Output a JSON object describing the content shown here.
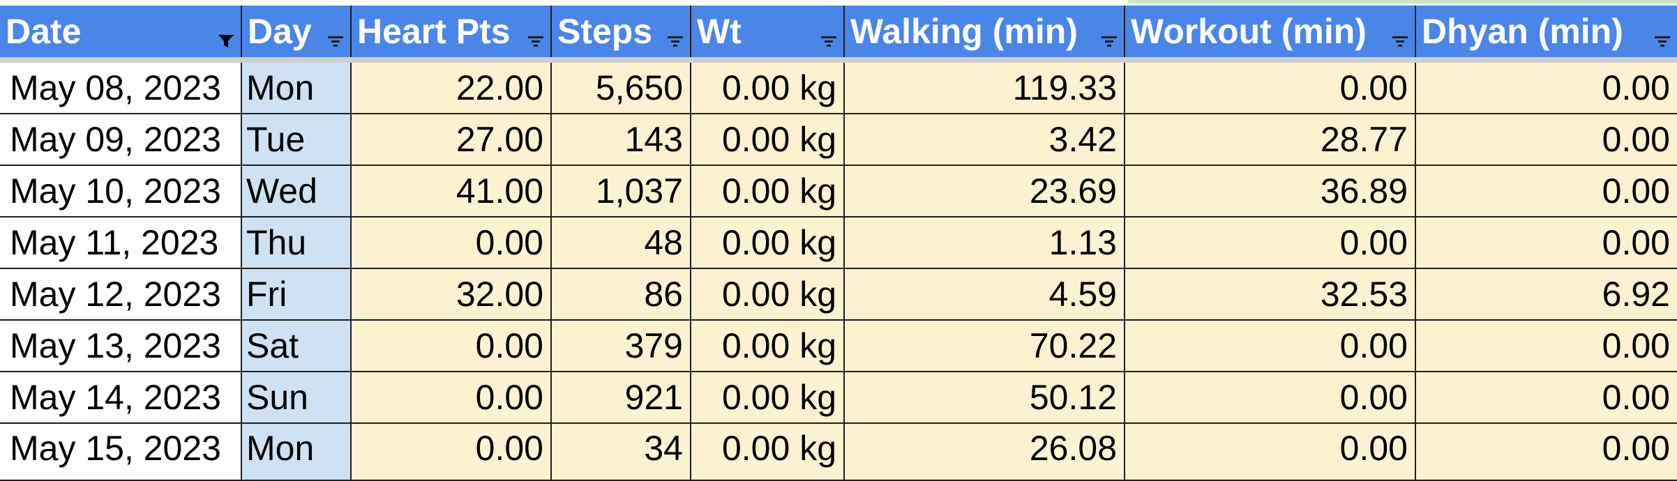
{
  "colors": {
    "header_bg": "#4a86e8",
    "header_text": "#ffffff",
    "date_column_bg": "#ffffff",
    "day_column_bg": "#cfe2f3",
    "data_cells_bg": "#fdf2d0",
    "grid_lines": "#1f1f1f"
  },
  "header": {
    "columns": [
      {
        "label": "Date",
        "filter_icon": "filter-active-icon"
      },
      {
        "label": "Day",
        "filter_icon": "filter-icon"
      },
      {
        "label": "Heart Pts",
        "filter_icon": "filter-icon"
      },
      {
        "label": "Steps",
        "filter_icon": "filter-icon"
      },
      {
        "label": "Wt",
        "filter_icon": "filter-icon"
      },
      {
        "label": "Walking (min)",
        "filter_icon": "filter-icon"
      },
      {
        "label": "Workout (min)",
        "filter_icon": "filter-icon"
      },
      {
        "label": "Dhyan (min)",
        "filter_icon": "filter-icon"
      }
    ]
  },
  "rows": [
    {
      "date": "May 08, 2023",
      "day": "Mon",
      "heart": "22.00",
      "steps": "5,650",
      "wt": "0.00 kg",
      "walking": "119.33",
      "workout": "0.00",
      "dhyan": "0.00"
    },
    {
      "date": "May 09, 2023",
      "day": "Tue",
      "heart": "27.00",
      "steps": "143",
      "wt": "0.00 kg",
      "walking": "3.42",
      "workout": "28.77",
      "dhyan": "0.00"
    },
    {
      "date": "May 10, 2023",
      "day": "Wed",
      "heart": "41.00",
      "steps": "1,037",
      "wt": "0.00 kg",
      "walking": "23.69",
      "workout": "36.89",
      "dhyan": "0.00"
    },
    {
      "date": "May 11, 2023",
      "day": "Thu",
      "heart": "0.00",
      "steps": "48",
      "wt": "0.00 kg",
      "walking": "1.13",
      "workout": "0.00",
      "dhyan": "0.00"
    },
    {
      "date": "May 12, 2023",
      "day": "Fri",
      "heart": "32.00",
      "steps": "86",
      "wt": "0.00 kg",
      "walking": "4.59",
      "workout": "32.53",
      "dhyan": "6.92"
    },
    {
      "date": "May 13, 2023",
      "day": "Sat",
      "heart": "0.00",
      "steps": "379",
      "wt": "0.00 kg",
      "walking": "70.22",
      "workout": "0.00",
      "dhyan": "0.00"
    },
    {
      "date": "May 14, 2023",
      "day": "Sun",
      "heart": "0.00",
      "steps": "921",
      "wt": "0.00 kg",
      "walking": "50.12",
      "workout": "0.00",
      "dhyan": "0.00"
    },
    {
      "date": "May 15, 2023",
      "day": "Mon",
      "heart": "0.00",
      "steps": "34",
      "wt": "0.00 kg",
      "walking": "26.08",
      "workout": "0.00",
      "dhyan": "0.00"
    }
  ]
}
